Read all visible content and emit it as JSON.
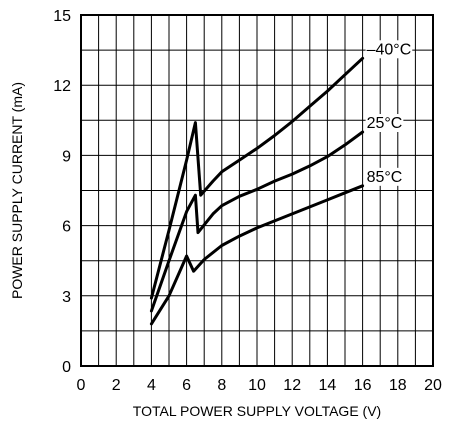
{
  "chart_data": {
    "type": "line",
    "title": "",
    "xlabel": "TOTAL POWER SUPPLY VOLTAGE (V)",
    "ylabel": "POWER SUPPLY CURRENT (mA)",
    "xlim": [
      0,
      20
    ],
    "ylim": [
      0,
      15
    ],
    "x_ticks": [
      "0",
      "2",
      "4",
      "6",
      "8",
      "10",
      "12",
      "14",
      "16",
      "18",
      "20"
    ],
    "y_ticks": [
      "0",
      "3",
      "6",
      "9",
      "12",
      "15"
    ],
    "grid": true,
    "series": [
      {
        "name": "–40°C",
        "x": [
          4,
          5,
          6,
          6.5,
          6.8,
          7.5,
          8,
          9,
          10,
          11,
          12,
          13,
          14,
          15,
          16
        ],
        "y": [
          2.9,
          5.8,
          8.8,
          10.4,
          7.3,
          7.9,
          8.3,
          8.8,
          9.3,
          9.85,
          10.45,
          11.1,
          11.75,
          12.45,
          13.15
        ]
      },
      {
        "name": "25°C",
        "x": [
          4,
          5,
          6,
          6.5,
          6.65,
          7.5,
          8,
          9,
          10,
          11,
          12,
          13,
          14,
          15,
          16
        ],
        "y": [
          2.35,
          4.5,
          6.6,
          7.3,
          5.7,
          6.5,
          6.85,
          7.25,
          7.55,
          7.9,
          8.2,
          8.55,
          8.95,
          9.45,
          10.0
        ]
      },
      {
        "name": "85°C",
        "x": [
          4,
          5,
          6,
          6.4,
          7,
          8,
          9,
          10,
          11,
          12,
          13,
          14,
          15,
          16
        ],
        "y": [
          1.8,
          3.0,
          4.7,
          4.05,
          4.55,
          5.15,
          5.55,
          5.9,
          6.2,
          6.5,
          6.8,
          7.1,
          7.4,
          7.7
        ]
      }
    ]
  }
}
